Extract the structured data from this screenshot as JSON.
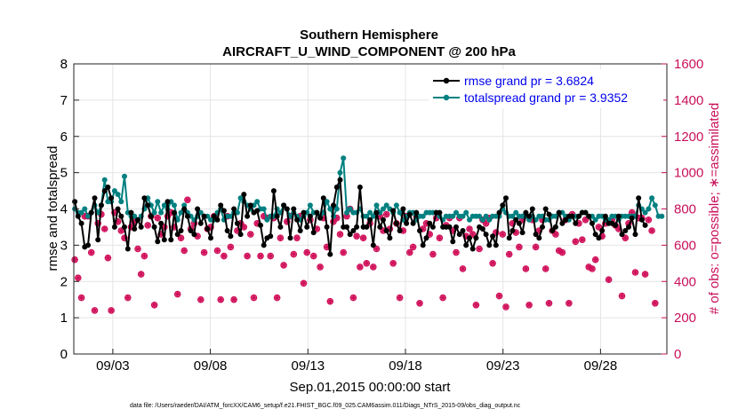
{
  "chart_data": {
    "type": "line",
    "title": "Southern Hemisphere",
    "subtitle": "AIRCRAFT_U_WIND_COMPONENT @ 200 hPa",
    "xlabel": "Sep.01,2015 00:00:00 start",
    "ylabel": "rmse and totalspread",
    "ylabel_right": "# of obs: o=possible; ∗=assimilated",
    "xlim": [
      1,
      31.4
    ],
    "ylim": [
      0,
      8
    ],
    "ylim_right": [
      0,
      1600
    ],
    "xticks": [
      3,
      8,
      13,
      18,
      23,
      28
    ],
    "xtick_labels": [
      "09/03",
      "09/08",
      "09/13",
      "09/18",
      "09/23",
      "09/28"
    ],
    "yticks": [
      0,
      1,
      2,
      3,
      4,
      5,
      6,
      7,
      8
    ],
    "yticks_right": [
      0,
      200,
      400,
      600,
      800,
      1000,
      1200,
      1400,
      1600
    ],
    "footnote": "data file: /Users/raeder/DAI/ATM_forcXX/CAM6_setup/f.e21.FHIST_BGC.f09_025.CAM6assim.011/Diags_NTrS_2015-09/obs_diag_output.nc",
    "colors": {
      "rmse": "#000000",
      "spread": "#008080",
      "obs": "#d0105a"
    },
    "series": [
      {
        "name": "rmse grand pr = 3.6824",
        "values": [
          4.2,
          3.8,
          3.6,
          2.95,
          3.0,
          3.9,
          4.3,
          3.15,
          4.1,
          4.5,
          4.6,
          4.3,
          3.5,
          4.0,
          3.8,
          3.5,
          2.9,
          3.9,
          3.45,
          3.7,
          3.5,
          4.3,
          4.1,
          3.8,
          3.5,
          3.1,
          3.6,
          3.15,
          4.2,
          3.15,
          3.9,
          3.3,
          3.4,
          4.0,
          3.8,
          3.4,
          3.3,
          4.0,
          3.6,
          3.8,
          3.45,
          3.2,
          3.8,
          3.7,
          4.1,
          3.95,
          3.4,
          3.25,
          4.0,
          3.6,
          3.3,
          4.4,
          3.8,
          4.1,
          3.9,
          3.95,
          3.55,
          3.0,
          3.2,
          3.25,
          4.5,
          3.8,
          3.5,
          4.1,
          4.0,
          3.2,
          4.0,
          3.7,
          3.4,
          3.9,
          3.5,
          3.8,
          3.35,
          3.9,
          3.75,
          4.3,
          3.5,
          2.75,
          4.1,
          4.6,
          4.8,
          3.5,
          3.5,
          3.3,
          3.4,
          3.5,
          4.6,
          3.5,
          3.5,
          3.7,
          3.0,
          3.9,
          3.5,
          3.7,
          3.4,
          3.2,
          3.95,
          3.6,
          3.4,
          4.0,
          3.6,
          3.85,
          3.6,
          3.9,
          3.4,
          3.0,
          3.2,
          3.6,
          3.5,
          3.9,
          3.9,
          3.5,
          3.5,
          3.5,
          3.1,
          3.5,
          3.3,
          3.4,
          3.0,
          3.2,
          2.9,
          3.2,
          3.5,
          3.45,
          3.3,
          3.0,
          3.25,
          3.0,
          3.9,
          4.1,
          4.3,
          3.2,
          3.4,
          3.7,
          3.6,
          3.35,
          3.9,
          3.8,
          4.0,
          3.3,
          3.2,
          3.5,
          4.0,
          3.85,
          3.4,
          3.5,
          3.9,
          3.6,
          3.7,
          3.8,
          3.8,
          3.6,
          3.8,
          3.9,
          3.9,
          3.8,
          3.6,
          3.3,
          3.2,
          3.4,
          3.8,
          3.6,
          3.6,
          3.55,
          3.8,
          3.3,
          3.4,
          3.5,
          3.75,
          3.3,
          4.3,
          3.7,
          3.55
        ]
      },
      {
        "name": "totalspread grand pr = 3.9352",
        "values": [
          4.0,
          3.9,
          3.9,
          4.0,
          3.8,
          3.9,
          4.1,
          3.9,
          4.1,
          4.8,
          4.2,
          4.2,
          4.5,
          4.4,
          4.2,
          4.9,
          3.9,
          3.8,
          3.8,
          3.7,
          3.8,
          4.0,
          4.3,
          4.1,
          3.9,
          4.2,
          3.9,
          4.1,
          4.0,
          4.2,
          4.1,
          3.7,
          3.9,
          4.1,
          3.9,
          3.8,
          3.7,
          3.8,
          3.9,
          3.8,
          3.8,
          3.7,
          3.7,
          3.9,
          4.0,
          3.7,
          3.8,
          3.8,
          3.9,
          3.9,
          4.3,
          4.2,
          4.1,
          4.0,
          4.1,
          4.2,
          4.0,
          4.0,
          3.7,
          3.8,
          3.8,
          4.0,
          3.9,
          4.1,
          4.0,
          3.8,
          3.9,
          3.8,
          3.7,
          3.8,
          3.9,
          4.1,
          3.9,
          3.9,
          3.8,
          3.9,
          4.2,
          4.0,
          3.8,
          4.0,
          5.0,
          5.4,
          3.9,
          4.0,
          3.9,
          3.9,
          4.0,
          3.8,
          3.8,
          3.9,
          3.8,
          4.1,
          3.9,
          4.0,
          4.1,
          4.0,
          3.9,
          4.1,
          3.9,
          3.7,
          3.8,
          3.9,
          3.9,
          3.7,
          3.8,
          3.8,
          3.9,
          3.9,
          3.9,
          3.9,
          3.8,
          3.7,
          3.8,
          3.8,
          3.8,
          3.9,
          3.8,
          3.8,
          3.9,
          3.7,
          3.8,
          3.8,
          3.8,
          3.7,
          3.8,
          3.7,
          3.8,
          3.8,
          3.8,
          4.0,
          3.9,
          3.8,
          3.8,
          3.9,
          3.8,
          3.8,
          3.8,
          3.7,
          3.8,
          3.7,
          3.8,
          3.8,
          3.7,
          3.7,
          3.8,
          3.8,
          3.9,
          3.9,
          3.8,
          3.7,
          3.8,
          3.8,
          3.8,
          3.9,
          3.9,
          3.8,
          3.8,
          3.7,
          3.8,
          3.8,
          3.7,
          3.7,
          3.8,
          3.8,
          3.7,
          3.8,
          3.8,
          3.8,
          3.8,
          3.8,
          4.1,
          4.0,
          3.9,
          4.0,
          4.3,
          4.1,
          3.8,
          3.8
        ]
      },
      {
        "name": "obs possible / assimilated",
        "axis": "right",
        "values": [
          520,
          420,
          310,
          760,
          760,
          560,
          240,
          720,
          770,
          690,
          530,
          240,
          780,
          730,
          680,
          640,
          310,
          700,
          730,
          580,
          440,
          540,
          710,
          760,
          270,
          750,
          660,
          700,
          760,
          780,
          700,
          330,
          640,
          570,
          850,
          690,
          720,
          650,
          300,
          560,
          690,
          700,
          760,
          570,
          300,
          540,
          760,
          590,
          300,
          680,
          720,
          700,
          540,
          660,
          310,
          720,
          540,
          760,
          750,
          540,
          750,
          310,
          640,
          490,
          730,
          760,
          550,
          640,
          760,
          390,
          560,
          740,
          540,
          690,
          480,
          750,
          590,
          290,
          730,
          750,
          660,
          560,
          760,
          800,
          310,
          650,
          480,
          640,
          500,
          720,
          480,
          580,
          760,
          680,
          770,
          690,
          500,
          720,
          310,
          680,
          760,
          560,
          590,
          760,
          280,
          690,
          720,
          660,
          550,
          750,
          640,
          310,
          710,
          750,
          680,
          560,
          750,
          470,
          650,
          690,
          660,
          270,
          580,
          740,
          720,
          750,
          500,
          670,
          320,
          660,
          260,
          550,
          720,
          670,
          590,
          740,
          470,
          270,
          740,
          590,
          680,
          740,
          470,
          280,
          680,
          660,
          570,
          560,
          740,
          280,
          770,
          620,
          720,
          630,
          740,
          480,
          470,
          520,
          700,
          650,
          720,
          410,
          740,
          710,
          690,
          320,
          640,
          720,
          780,
          450,
          750,
          750,
          440,
          740,
          680,
          280
        ]
      }
    ]
  }
}
